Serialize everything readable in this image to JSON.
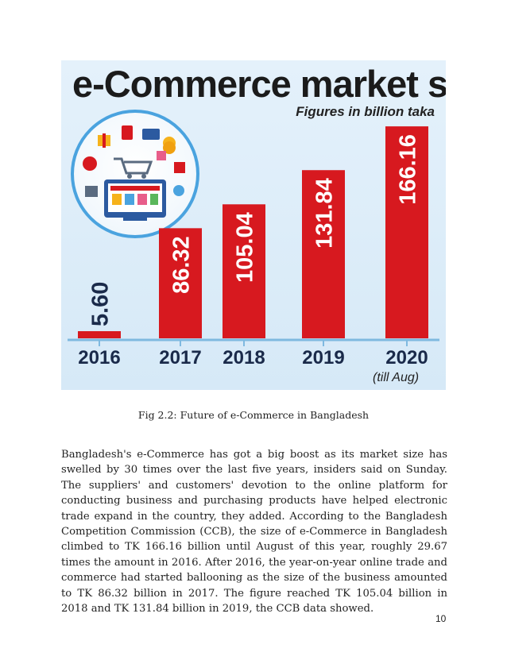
{
  "figure": {
    "title": "e-Commerce market size",
    "units_note": "Figures in billion taka",
    "last_bar_note": "(till Aug)"
  },
  "chart_data": {
    "type": "bar",
    "title": "e-Commerce market size",
    "subtitle": "Figures in billion taka",
    "categories": [
      "2016",
      "2017",
      "2018",
      "2019",
      "2020"
    ],
    "values": [
      5.6,
      86.32,
      105.04,
      131.84,
      166.16
    ],
    "value_labels": [
      "5.60",
      "86.32",
      "105.04",
      "131.84",
      "166.16"
    ],
    "ylim": [
      0,
      180
    ],
    "xlabel": "",
    "ylabel": "",
    "grid": false,
    "colors": {
      "bar": "#d7191f",
      "bar_label": "#ffffff",
      "outside_label": "#1a2a4a",
      "axis": "#7fb9e0"
    }
  },
  "caption": "Fig 2.2: Future of e-Commerce in Bangladesh",
  "body_text": "Bangladesh's e-Commerce has got a big boost as its market size has swelled by 30 times over the last five years, insiders said on Sunday. The suppliers' and customers' devotion to the online platform for conducting business and purchasing products have helped electronic trade expand in the country, they added. According to the Bangladesh Competition Commission (CCB), the size of e-Commerce in Bangladesh climbed to TK 166.16 billion until August of this year, roughly 29.67 times the amount in 2016. After 2016, the year-on-year online trade and commerce had started ballooning as the size of the business amounted to TK 86.32 billion in 2017. The figure reached TK 105.04 billion in 2018 and TK 131.84 billion in 2019, the CCB data showed.",
  "page_number": "10"
}
